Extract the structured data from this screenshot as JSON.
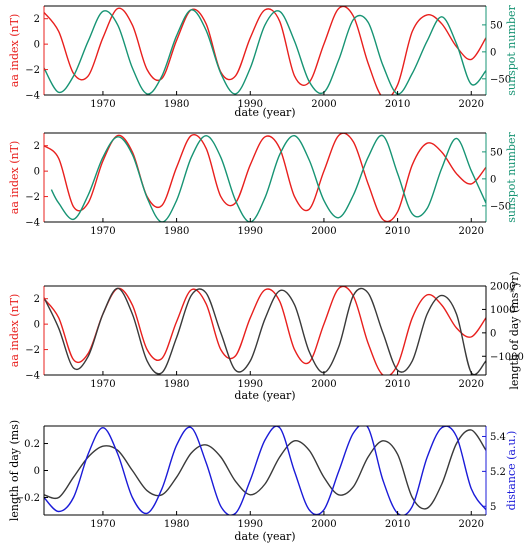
{
  "colors": {
    "red": "#e8201e",
    "green": "#179474",
    "black": "#3a3a3a",
    "blue": "#1b1bd8",
    "axis": "#000000"
  },
  "chart_data": [
    {
      "type": "line",
      "xlabel": "date (year)",
      "xlim": [
        1962,
        2022
      ],
      "xticks": [
        1970,
        1980,
        1990,
        2000,
        2010,
        2020
      ],
      "left_axis": {
        "label": "aa index (nT)",
        "color": "#e8201e",
        "ylim": [
          -4,
          3
        ],
        "ticks": [
          -4,
          -2,
          0,
          2
        ]
      },
      "right_axis": {
        "label": "sunspot number",
        "color": "#179474",
        "ylim": [
          -80,
          85
        ],
        "ticks": [
          -50,
          0,
          50
        ]
      },
      "series": [
        {
          "axis": "left",
          "color": "#e8201e",
          "x": [
            1962,
            1964,
            1966,
            1968,
            1970,
            1972,
            1974,
            1976,
            1978,
            1980,
            1982,
            1984,
            1986,
            1988,
            1990,
            1992,
            1994,
            1996,
            1998,
            2000,
            2002,
            2004,
            2006,
            2008,
            2010,
            2012,
            2014,
            2016,
            2018,
            2020,
            2022
          ],
          "y": [
            2.5,
            1,
            -2.3,
            -2.5,
            0.5,
            2.8,
            1.5,
            -2,
            -2.7,
            0.3,
            2.7,
            1.6,
            -2.2,
            -2.5,
            0.5,
            2.7,
            1.8,
            -2.5,
            -3,
            0,
            2.8,
            2.2,
            -1.5,
            -4.2,
            -3.2,
            1,
            2.3,
            1.6,
            -0.2,
            -1.2,
            0.5
          ]
        },
        {
          "axis": "right",
          "color": "#179474",
          "x": [
            1962,
            1964,
            1966,
            1968,
            1970,
            1972,
            1974,
            1976,
            1978,
            1980,
            1982,
            1984,
            1986,
            1988,
            1990,
            1992,
            1994,
            1996,
            1998,
            2000,
            2002,
            2004,
            2006,
            2008,
            2010,
            2012,
            2014,
            2016,
            2018,
            2020,
            2022
          ],
          "y": [
            -30,
            -75,
            -45,
            20,
            75,
            50,
            -30,
            -78,
            -45,
            30,
            78,
            40,
            -40,
            -78,
            -30,
            50,
            75,
            20,
            -55,
            -75,
            -15,
            60,
            55,
            -25,
            -78,
            -40,
            20,
            65,
            15,
            -60,
            -35
          ]
        }
      ]
    },
    {
      "type": "line",
      "xlabel": "",
      "xlim": [
        1962,
        2022
      ],
      "xticks": [
        1970,
        1980,
        1990,
        2000,
        2010,
        2020
      ],
      "left_axis": {
        "label": "aa index (nT)",
        "color": "#e8201e",
        "ylim": [
          -4,
          3
        ],
        "ticks": [
          -4,
          -2,
          0,
          2
        ]
      },
      "right_axis": {
        "label": "sunspot number",
        "color": "#179474",
        "ylim": [
          -80,
          85
        ],
        "ticks": [
          -50,
          0,
          50
        ]
      },
      "series": [
        {
          "axis": "left",
          "color": "#e8201e",
          "x": [
            1962,
            1964,
            1966,
            1968,
            1970,
            1972,
            1974,
            1976,
            1978,
            1980,
            1982,
            1984,
            1986,
            1988,
            1990,
            1992,
            1994,
            1996,
            1998,
            2000,
            2002,
            2004,
            2006,
            2008,
            2010,
            2012,
            2014,
            2016,
            2018,
            2020,
            2022
          ],
          "y": [
            2,
            1,
            -2.8,
            -2.5,
            0.8,
            2.8,
            1.5,
            -2,
            -2.7,
            0.3,
            2.8,
            1.8,
            -2,
            -2.5,
            0.5,
            2.7,
            1.8,
            -2,
            -3,
            0,
            2.8,
            2.3,
            -1,
            -3.8,
            -3.2,
            0.5,
            2.2,
            1.5,
            -0.2,
            -1,
            0.3
          ]
        },
        {
          "axis": "right",
          "color": "#179474",
          "x": [
            1963,
            1964,
            1966,
            1968,
            1970,
            1972,
            1974,
            1976,
            1978,
            1980,
            1982,
            1984,
            1986,
            1988,
            1990,
            1992,
            1994,
            1996,
            1998,
            2000,
            2002,
            2004,
            2006,
            2008,
            2010,
            2012,
            2014,
            2016,
            2018,
            2020,
            2022
          ],
          "y": [
            -20,
            -45,
            -75,
            -30,
            40,
            78,
            45,
            -35,
            -80,
            -40,
            40,
            80,
            40,
            -40,
            -80,
            -35,
            45,
            80,
            35,
            -40,
            -72,
            -30,
            40,
            80,
            10,
            -65,
            -55,
            20,
            75,
            15,
            -45
          ]
        }
      ]
    },
    {
      "type": "line",
      "xlabel": "date (year)",
      "xlim": [
        1962,
        2022
      ],
      "xticks": [
        1970,
        1980,
        1990,
        2000,
        2010,
        2020
      ],
      "left_axis": {
        "label": "aa index (nT)",
        "color": "#e8201e",
        "ylim": [
          -4,
          3
        ],
        "ticks": [
          -4,
          -2,
          0,
          2
        ]
      },
      "right_axis": {
        "label": "length of day (ms*yr)",
        "color": "#000000",
        "ylim": [
          -1800,
          2000
        ],
        "ticks": [
          -1000,
          0,
          1000,
          2000
        ]
      },
      "series": [
        {
          "axis": "left",
          "color": "#e8201e",
          "x": [
            1962,
            1964,
            1966,
            1968,
            1970,
            1972,
            1974,
            1976,
            1978,
            1980,
            1982,
            1984,
            1986,
            1988,
            1990,
            1992,
            1994,
            1996,
            1998,
            2000,
            2002,
            2004,
            2006,
            2008,
            2010,
            2012,
            2014,
            2016,
            2018,
            2020,
            2022
          ],
          "y": [
            2,
            0.5,
            -2.8,
            -2.3,
            0.8,
            2.8,
            1.5,
            -2,
            -2.7,
            0.2,
            2.7,
            1.6,
            -2,
            -2.5,
            0.5,
            2.7,
            1.8,
            -2,
            -3,
            0,
            2.8,
            2.2,
            -1.5,
            -4,
            -3.2,
            0.5,
            2.3,
            1.5,
            -0.3,
            -1,
            0.5
          ]
        },
        {
          "axis": "right",
          "color": "#3a3a3a",
          "x": [
            1962,
            1964,
            1966,
            1968,
            1970,
            1972,
            1974,
            1976,
            1978,
            1980,
            1982,
            1984,
            1986,
            1988,
            1990,
            1992,
            1994,
            1996,
            1998,
            2000,
            2002,
            2004,
            2006,
            2008,
            2010,
            2012,
            2014,
            2016,
            2018,
            2020,
            2022
          ],
          "y": [
            1500,
            200,
            -1500,
            -1000,
            800,
            1900,
            800,
            -1200,
            -1700,
            -200,
            1600,
            1700,
            0,
            -1600,
            -1200,
            600,
            1800,
            1200,
            -800,
            -1700,
            -600,
            1600,
            1700,
            0,
            -1600,
            -1200,
            800,
            1600,
            800,
            -1700,
            -1200
          ]
        }
      ]
    },
    {
      "type": "line",
      "xlabel": "date (year)",
      "xlim": [
        1962,
        2022
      ],
      "xticks": [
        1970,
        1980,
        1990,
        2000,
        2010,
        2020
      ],
      "left_axis": {
        "label": "length of day (ms)",
        "color": "#000000",
        "ylim": [
          -0.33,
          0.33
        ],
        "ticks": [
          -0.2,
          0,
          0.2
        ]
      },
      "right_axis": {
        "label": "distance (a.u.)",
        "color": "#1b1bd8",
        "ylim": [
          4.95,
          5.46
        ],
        "ticks": [
          5,
          5.2,
          5.4
        ]
      },
      "series": [
        {
          "axis": "left",
          "color": "#3a3a3a",
          "x": [
            1962,
            1964,
            1966,
            1968,
            1970,
            1972,
            1974,
            1976,
            1978,
            1980,
            1982,
            1984,
            1986,
            1988,
            1990,
            1992,
            1994,
            1996,
            1998,
            2000,
            2002,
            2004,
            2006,
            2008,
            2010,
            2012,
            2014,
            2016,
            2018,
            2020,
            2022
          ],
          "y": [
            -0.18,
            -0.2,
            -0.05,
            0.1,
            0.18,
            0.15,
            0,
            -0.15,
            -0.18,
            -0.05,
            0.13,
            0.19,
            0.1,
            -0.08,
            -0.18,
            -0.1,
            0.1,
            0.22,
            0.15,
            -0.05,
            -0.18,
            -0.12,
            0.1,
            0.22,
            0.12,
            -0.2,
            -0.28,
            -0.1,
            0.2,
            0.3,
            0.15
          ]
        },
        {
          "axis": "right",
          "color": "#1b1bd8",
          "x": [
            1962,
            1964,
            1966,
            1968,
            1970,
            1972,
            1974,
            1976,
            1978,
            1980,
            1982,
            1984,
            1986,
            1988,
            1990,
            1992,
            1994,
            1996,
            1998,
            2000,
            2002,
            2004,
            2006,
            2008,
            2010,
            2012,
            2014,
            2016,
            2018,
            2020,
            2022
          ],
          "y": [
            5.05,
            4.97,
            5.05,
            5.3,
            5.45,
            5.3,
            5.05,
            4.96,
            5.1,
            5.35,
            5.45,
            5.25,
            5.0,
            4.96,
            5.15,
            5.38,
            5.45,
            5.2,
            4.98,
            4.98,
            5.2,
            5.42,
            5.45,
            5.15,
            4.96,
            5.0,
            5.28,
            5.45,
            5.4,
            5.1,
            4.98
          ]
        }
      ]
    }
  ]
}
